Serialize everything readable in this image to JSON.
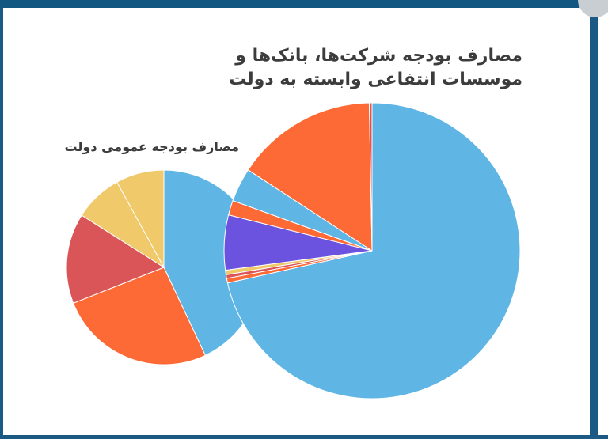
{
  "colors": {
    "frame": "#1a5a84",
    "background": "#ffffff",
    "title_text": "#3c3c3c",
    "slice_border": "#ffffff"
  },
  "chart_data": [
    {
      "type": "pie",
      "title": "مصارف بودجه عمومی دولت",
      "legend": "none",
      "series": [
        {
          "values": [
            43,
            26,
            15,
            8,
            8
          ],
          "colors": [
            "#5fb6e5",
            "#fe6a35",
            "#d95557",
            "#efc96a",
            "#efc96a"
          ]
        }
      ]
    },
    {
      "type": "pie",
      "title": "مصارف بودجه شرکت‌ها، بانک‌ها و موسسات انتفاعی وابسته به دولت",
      "legend": "none",
      "series": [
        {
          "values": [
            71.5,
            0.5,
            0.4,
            0.5,
            6.0,
            1.6,
            3.7,
            15.5,
            0.3
          ],
          "colors": [
            "#5fb6e5",
            "#fe6a35",
            "#d95557",
            "#efc96a",
            "#6c53df",
            "#fe6a35",
            "#5fb6e5",
            "#fe6a35",
            "#d95557"
          ]
        }
      ]
    }
  ]
}
